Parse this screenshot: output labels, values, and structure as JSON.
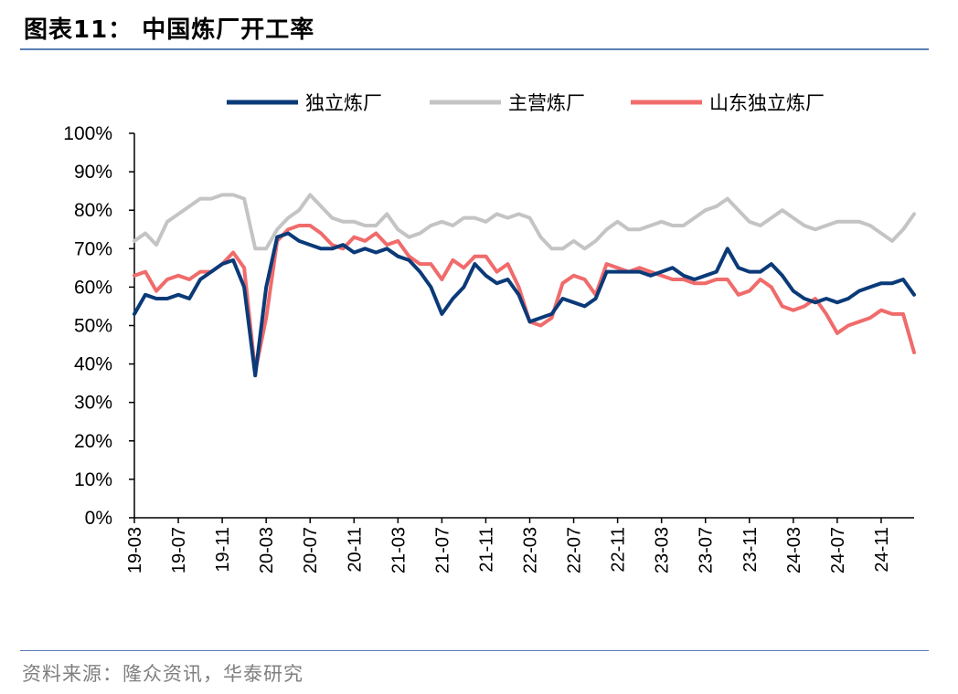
{
  "header": {
    "title": "图表11：  中国炼厂开工率"
  },
  "footer": {
    "source": "资料来源：隆众资讯，华泰研究"
  },
  "colors": {
    "independent": "#0b3a78",
    "major": "#c4c4c4",
    "shandong": "#f06b6b",
    "rule": "#5b7fb5"
  },
  "chart_data": {
    "type": "line",
    "title": "",
    "xlabel": "",
    "ylabel": "",
    "ylim": [
      0,
      100
    ],
    "y_ticks": [
      "0%",
      "10%",
      "20%",
      "30%",
      "40%",
      "50%",
      "60%",
      "70%",
      "80%",
      "90%",
      "100%"
    ],
    "x_ticks": [
      "19-03",
      "19-07",
      "19-11",
      "20-03",
      "20-07",
      "20-11",
      "21-03",
      "21-07",
      "21-11",
      "22-03",
      "22-07",
      "22-11",
      "23-03",
      "23-07",
      "23-11",
      "24-03",
      "24-07",
      "24-11"
    ],
    "legend": {
      "position": "top"
    },
    "grid": false,
    "series": [
      {
        "name": "独立炼厂",
        "color": "#0b3a78",
        "points": [
          [
            "19-03",
            53
          ],
          [
            "19-04",
            58
          ],
          [
            "19-05",
            57
          ],
          [
            "19-06",
            57
          ],
          [
            "19-07",
            58
          ],
          [
            "19-08",
            57
          ],
          [
            "19-09",
            62
          ],
          [
            "19-10",
            64
          ],
          [
            "19-11",
            66
          ],
          [
            "19-12",
            67
          ],
          [
            "20-01",
            60
          ],
          [
            "20-02",
            37
          ],
          [
            "20-03",
            60
          ],
          [
            "20-04",
            73
          ],
          [
            "20-05",
            74
          ],
          [
            "20-06",
            72
          ],
          [
            "20-07",
            71
          ],
          [
            "20-08",
            70
          ],
          [
            "20-09",
            70
          ],
          [
            "20-10",
            71
          ],
          [
            "20-11",
            69
          ],
          [
            "20-12",
            70
          ],
          [
            "21-01",
            69
          ],
          [
            "21-02",
            70
          ],
          [
            "21-03",
            68
          ],
          [
            "21-04",
            67
          ],
          [
            "21-05",
            64
          ],
          [
            "21-06",
            60
          ],
          [
            "21-07",
            53
          ],
          [
            "21-08",
            57
          ],
          [
            "21-09",
            60
          ],
          [
            "21-10",
            66
          ],
          [
            "21-11",
            63
          ],
          [
            "21-12",
            61
          ],
          [
            "22-01",
            62
          ],
          [
            "22-02",
            58
          ],
          [
            "22-03",
            51
          ],
          [
            "22-04",
            52
          ],
          [
            "22-05",
            53
          ],
          [
            "22-06",
            57
          ],
          [
            "22-07",
            56
          ],
          [
            "22-08",
            55
          ],
          [
            "22-09",
            57
          ],
          [
            "22-10",
            64
          ],
          [
            "22-11",
            64
          ],
          [
            "22-12",
            64
          ],
          [
            "23-01",
            64
          ],
          [
            "23-02",
            63
          ],
          [
            "23-03",
            64
          ],
          [
            "23-04",
            65
          ],
          [
            "23-05",
            63
          ],
          [
            "23-06",
            62
          ],
          [
            "23-07",
            63
          ],
          [
            "23-08",
            64
          ],
          [
            "23-09",
            70
          ],
          [
            "23-10",
            65
          ],
          [
            "23-11",
            64
          ],
          [
            "23-12",
            64
          ],
          [
            "24-01",
            66
          ],
          [
            "24-02",
            63
          ],
          [
            "24-03",
            59
          ],
          [
            "24-04",
            57
          ],
          [
            "24-05",
            56
          ],
          [
            "24-06",
            57
          ],
          [
            "24-07",
            56
          ],
          [
            "24-08",
            57
          ],
          [
            "24-09",
            59
          ],
          [
            "24-10",
            60
          ],
          [
            "24-11",
            61
          ],
          [
            "24-12",
            61
          ],
          [
            "25-01",
            62
          ],
          [
            "25-02",
            58
          ]
        ]
      },
      {
        "name": "主营炼厂",
        "color": "#c4c4c4",
        "points": [
          [
            "19-03",
            72
          ],
          [
            "19-04",
            74
          ],
          [
            "19-05",
            71
          ],
          [
            "19-06",
            77
          ],
          [
            "19-07",
            79
          ],
          [
            "19-08",
            81
          ],
          [
            "19-09",
            83
          ],
          [
            "19-10",
            83
          ],
          [
            "19-11",
            84
          ],
          [
            "19-12",
            84
          ],
          [
            "20-01",
            83
          ],
          [
            "20-02",
            70
          ],
          [
            "20-03",
            70
          ],
          [
            "20-04",
            75
          ],
          [
            "20-05",
            78
          ],
          [
            "20-06",
            80
          ],
          [
            "20-07",
            84
          ],
          [
            "20-08",
            81
          ],
          [
            "20-09",
            78
          ],
          [
            "20-10",
            77
          ],
          [
            "20-11",
            77
          ],
          [
            "20-12",
            76
          ],
          [
            "21-01",
            76
          ],
          [
            "21-02",
            79
          ],
          [
            "21-03",
            75
          ],
          [
            "21-04",
            73
          ],
          [
            "21-05",
            74
          ],
          [
            "21-06",
            76
          ],
          [
            "21-07",
            77
          ],
          [
            "21-08",
            76
          ],
          [
            "21-09",
            78
          ],
          [
            "21-10",
            78
          ],
          [
            "21-11",
            77
          ],
          [
            "21-12",
            79
          ],
          [
            "22-01",
            78
          ],
          [
            "22-02",
            79
          ],
          [
            "22-03",
            78
          ],
          [
            "22-04",
            73
          ],
          [
            "22-05",
            70
          ],
          [
            "22-06",
            70
          ],
          [
            "22-07",
            72
          ],
          [
            "22-08",
            70
          ],
          [
            "22-09",
            72
          ],
          [
            "22-10",
            75
          ],
          [
            "22-11",
            77
          ],
          [
            "22-12",
            75
          ],
          [
            "23-01",
            75
          ],
          [
            "23-02",
            76
          ],
          [
            "23-03",
            77
          ],
          [
            "23-04",
            76
          ],
          [
            "23-05",
            76
          ],
          [
            "23-06",
            78
          ],
          [
            "23-07",
            80
          ],
          [
            "23-08",
            81
          ],
          [
            "23-09",
            83
          ],
          [
            "23-10",
            80
          ],
          [
            "23-11",
            77
          ],
          [
            "23-12",
            76
          ],
          [
            "24-01",
            78
          ],
          [
            "24-02",
            80
          ],
          [
            "24-03",
            78
          ],
          [
            "24-04",
            76
          ],
          [
            "24-05",
            75
          ],
          [
            "24-06",
            76
          ],
          [
            "24-07",
            77
          ],
          [
            "24-08",
            77
          ],
          [
            "24-09",
            77
          ],
          [
            "24-10",
            76
          ],
          [
            "24-11",
            74
          ],
          [
            "24-12",
            72
          ],
          [
            "25-01",
            75
          ],
          [
            "25-02",
            79
          ]
        ]
      },
      {
        "name": "山东独立炼厂",
        "color": "#f06b6b",
        "points": [
          [
            "19-03",
            63
          ],
          [
            "19-04",
            64
          ],
          [
            "19-05",
            59
          ],
          [
            "19-06",
            62
          ],
          [
            "19-07",
            63
          ],
          [
            "19-08",
            62
          ],
          [
            "19-09",
            64
          ],
          [
            "19-10",
            64
          ],
          [
            "19-11",
            66
          ],
          [
            "19-12",
            69
          ],
          [
            "20-01",
            65
          ],
          [
            "20-02",
            38
          ],
          [
            "20-03",
            52
          ],
          [
            "20-04",
            72
          ],
          [
            "20-05",
            75
          ],
          [
            "20-06",
            76
          ],
          [
            "20-07",
            76
          ],
          [
            "20-08",
            74
          ],
          [
            "20-09",
            71
          ],
          [
            "20-10",
            70
          ],
          [
            "20-11",
            73
          ],
          [
            "20-12",
            72
          ],
          [
            "21-01",
            74
          ],
          [
            "21-02",
            71
          ],
          [
            "21-03",
            72
          ],
          [
            "21-04",
            68
          ],
          [
            "21-05",
            66
          ],
          [
            "21-06",
            66
          ],
          [
            "21-07",
            62
          ],
          [
            "21-08",
            67
          ],
          [
            "21-09",
            65
          ],
          [
            "21-10",
            68
          ],
          [
            "21-11",
            68
          ],
          [
            "21-12",
            64
          ],
          [
            "22-01",
            66
          ],
          [
            "22-02",
            60
          ],
          [
            "22-03",
            51
          ],
          [
            "22-04",
            50
          ],
          [
            "22-05",
            52
          ],
          [
            "22-06",
            61
          ],
          [
            "22-07",
            63
          ],
          [
            "22-08",
            62
          ],
          [
            "22-09",
            58
          ],
          [
            "22-10",
            66
          ],
          [
            "22-11",
            65
          ],
          [
            "22-12",
            64
          ],
          [
            "23-01",
            65
          ],
          [
            "23-02",
            64
          ],
          [
            "23-03",
            63
          ],
          [
            "23-04",
            62
          ],
          [
            "23-05",
            62
          ],
          [
            "23-06",
            61
          ],
          [
            "23-07",
            61
          ],
          [
            "23-08",
            62
          ],
          [
            "23-09",
            62
          ],
          [
            "23-10",
            58
          ],
          [
            "23-11",
            59
          ],
          [
            "23-12",
            62
          ],
          [
            "24-01",
            60
          ],
          [
            "24-02",
            55
          ],
          [
            "24-03",
            54
          ],
          [
            "24-04",
            55
          ],
          [
            "24-05",
            57
          ],
          [
            "24-06",
            53
          ],
          [
            "24-07",
            48
          ],
          [
            "24-08",
            50
          ],
          [
            "24-09",
            51
          ],
          [
            "24-10",
            52
          ],
          [
            "24-11",
            54
          ],
          [
            "24-12",
            53
          ],
          [
            "25-01",
            53
          ],
          [
            "25-02",
            43
          ]
        ]
      }
    ]
  }
}
